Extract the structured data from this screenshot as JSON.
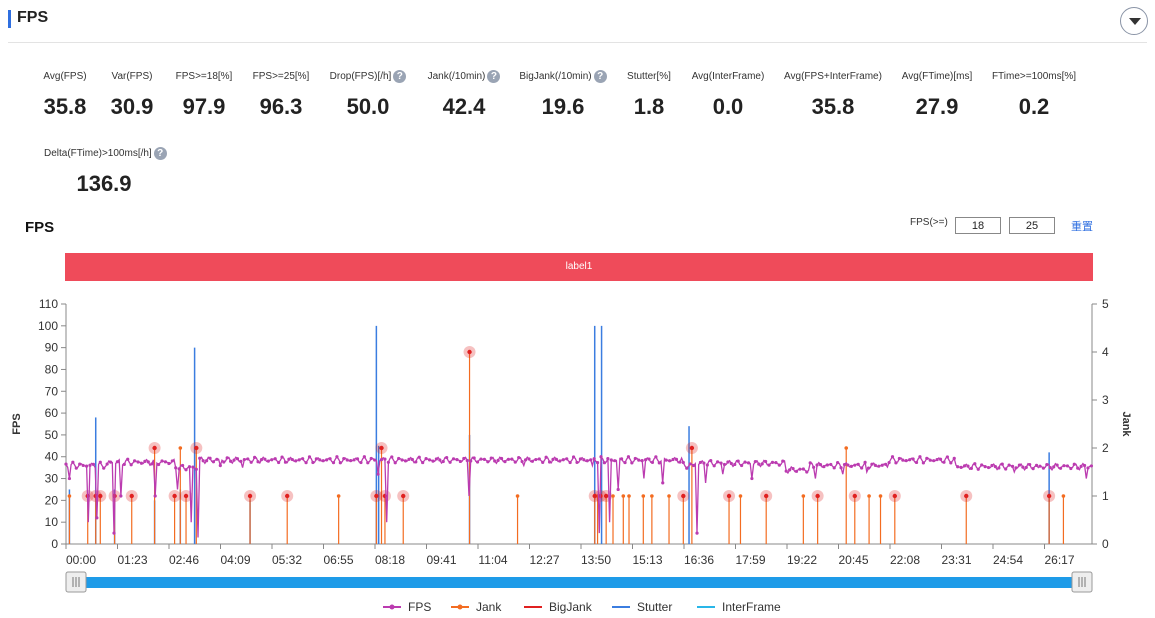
{
  "header": {
    "title": "FPS"
  },
  "metrics": [
    {
      "label": "Avg(FPS)",
      "value": "35.8",
      "help": false
    },
    {
      "label": "Var(FPS)",
      "value": "30.9",
      "help": false
    },
    {
      "label": "FPS>=18[%]",
      "value": "97.9",
      "help": false
    },
    {
      "label": "FPS>=25[%]",
      "value": "96.3",
      "help": false
    },
    {
      "label": "Drop(FPS)[/h]",
      "value": "50.0",
      "help": true
    },
    {
      "label": "Jank(/10min)",
      "value": "42.4",
      "help": true
    },
    {
      "label": "BigJank(/10min)",
      "value": "19.6",
      "help": true
    },
    {
      "label": "Stutter[%]",
      "value": "1.8",
      "help": false
    },
    {
      "label": "Avg(InterFrame)",
      "value": "0.0",
      "help": false
    },
    {
      "label": "Avg(FPS+InterFrame)",
      "value": "35.8",
      "help": false
    },
    {
      "label": "Avg(FTime)[ms]",
      "value": "27.9",
      "help": false
    },
    {
      "label": "FTime>=100ms[%]",
      "value": "0.2",
      "help": false
    },
    {
      "label": "Delta(FTime)>100ms[/h]",
      "value": "136.9",
      "help": true
    }
  ],
  "chart_panel": {
    "title": "FPS",
    "threshold_label": "FPS(>=)",
    "threshold_low": "18",
    "threshold_high": "25",
    "reset_label": "重置",
    "band_label": "label1"
  },
  "colors": {
    "fps": "#bb3bb0",
    "jank": "#f36c21",
    "bigjank": "#e02020",
    "stutter": "#3b7de0",
    "interframe": "#29b6e8",
    "band": "#ef4b5a",
    "slider": "#1e9be8"
  },
  "chart_data": {
    "type": "line",
    "x_ticks": [
      "00:00",
      "01:23",
      "02:46",
      "04:09",
      "05:32",
      "06:55",
      "08:18",
      "09:41",
      "11:04",
      "12:27",
      "13:50",
      "15:13",
      "16:36",
      "17:59",
      "19:22",
      "20:45",
      "22:08",
      "23:31",
      "24:54",
      "26:17"
    ],
    "x_range_seconds": [
      0,
      1795
    ],
    "ylabel": "FPS",
    "ylabel_right": "Jank",
    "ylim": [
      0,
      110
    ],
    "y_ticks": [
      0,
      10,
      20,
      30,
      40,
      50,
      60,
      70,
      80,
      90,
      100,
      110
    ],
    "ylim_right": [
      0,
      5
    ],
    "y_ticks_right": [
      0,
      1,
      2,
      3,
      4,
      5
    ],
    "fps_segments": [
      {
        "from": 0,
        "to": 75,
        "value": 36
      },
      {
        "from": 75,
        "to": 190,
        "value": 37.5
      },
      {
        "from": 190,
        "to": 230,
        "value": 35
      },
      {
        "from": 230,
        "to": 1080,
        "value": 38.5
      },
      {
        "from": 1080,
        "to": 1100,
        "value": 36
      },
      {
        "from": 1100,
        "to": 1260,
        "value": 37
      },
      {
        "from": 1260,
        "to": 1300,
        "value": 34
      },
      {
        "from": 1300,
        "to": 1440,
        "value": 36
      },
      {
        "from": 1440,
        "to": 1555,
        "value": 38.5
      },
      {
        "from": 1555,
        "to": 1795,
        "value": 35.5
      }
    ],
    "fps_drops": [
      {
        "x": 6,
        "y": 30
      },
      {
        "x": 40,
        "y": 10
      },
      {
        "x": 55,
        "y": 12
      },
      {
        "x": 83,
        "y": 5
      },
      {
        "x": 95,
        "y": 22
      },
      {
        "x": 155,
        "y": 22
      },
      {
        "x": 195,
        "y": 25
      },
      {
        "x": 220,
        "y": 10
      },
      {
        "x": 230,
        "y": 3
      },
      {
        "x": 270,
        "y": 36
      },
      {
        "x": 310,
        "y": 35
      },
      {
        "x": 545,
        "y": 32
      },
      {
        "x": 560,
        "y": 10
      },
      {
        "x": 705,
        "y": 22
      },
      {
        "x": 800,
        "y": 36
      },
      {
        "x": 920,
        "y": 36
      },
      {
        "x": 932,
        "y": 5
      },
      {
        "x": 950,
        "y": 10
      },
      {
        "x": 965,
        "y": 25
      },
      {
        "x": 1010,
        "y": 30
      },
      {
        "x": 1045,
        "y": 28
      },
      {
        "x": 1105,
        "y": 5
      },
      {
        "x": 1120,
        "y": 28
      },
      {
        "x": 1150,
        "y": 32
      },
      {
        "x": 1200,
        "y": 30
      },
      {
        "x": 1310,
        "y": 30
      },
      {
        "x": 1360,
        "y": 32
      },
      {
        "x": 1400,
        "y": 33
      },
      {
        "x": 1660,
        "y": 33
      },
      {
        "x": 1700,
        "y": 35
      },
      {
        "x": 1785,
        "y": 30
      }
    ],
    "jank": [
      {
        "x": 6,
        "y": 1
      },
      {
        "x": 38,
        "y": 1
      },
      {
        "x": 52,
        "y": 1
      },
      {
        "x": 60,
        "y": 1
      },
      {
        "x": 85,
        "y": 1
      },
      {
        "x": 115,
        "y": 1
      },
      {
        "x": 155,
        "y": 2
      },
      {
        "x": 190,
        "y": 1
      },
      {
        "x": 200,
        "y": 2
      },
      {
        "x": 210,
        "y": 1
      },
      {
        "x": 228,
        "y": 2
      },
      {
        "x": 322,
        "y": 1
      },
      {
        "x": 387,
        "y": 1
      },
      {
        "x": 477,
        "y": 1
      },
      {
        "x": 543,
        "y": 1
      },
      {
        "x": 552,
        "y": 2
      },
      {
        "x": 558,
        "y": 1
      },
      {
        "x": 590,
        "y": 1
      },
      {
        "x": 706,
        "y": 4
      },
      {
        "x": 790,
        "y": 1
      },
      {
        "x": 925,
        "y": 1
      },
      {
        "x": 930,
        "y": 1
      },
      {
        "x": 945,
        "y": 1
      },
      {
        "x": 957,
        "y": 1
      },
      {
        "x": 975,
        "y": 1
      },
      {
        "x": 985,
        "y": 1
      },
      {
        "x": 1010,
        "y": 1
      },
      {
        "x": 1025,
        "y": 1
      },
      {
        "x": 1055,
        "y": 1
      },
      {
        "x": 1080,
        "y": 1
      },
      {
        "x": 1095,
        "y": 2
      },
      {
        "x": 1160,
        "y": 1
      },
      {
        "x": 1180,
        "y": 1
      },
      {
        "x": 1225,
        "y": 1
      },
      {
        "x": 1290,
        "y": 1
      },
      {
        "x": 1315,
        "y": 1
      },
      {
        "x": 1365,
        "y": 2
      },
      {
        "x": 1380,
        "y": 1
      },
      {
        "x": 1405,
        "y": 1
      },
      {
        "x": 1425,
        "y": 1
      },
      {
        "x": 1450,
        "y": 1
      },
      {
        "x": 1575,
        "y": 1
      },
      {
        "x": 1720,
        "y": 1
      },
      {
        "x": 1745,
        "y": 1
      }
    ],
    "bigjank_markers": [
      {
        "x": 38,
        "y": 1
      },
      {
        "x": 52,
        "y": 1
      },
      {
        "x": 60,
        "y": 1
      },
      {
        "x": 85,
        "y": 1
      },
      {
        "x": 115,
        "y": 1
      },
      {
        "x": 155,
        "y": 2
      },
      {
        "x": 190,
        "y": 1
      },
      {
        "x": 210,
        "y": 1
      },
      {
        "x": 228,
        "y": 2
      },
      {
        "x": 322,
        "y": 1
      },
      {
        "x": 387,
        "y": 1
      },
      {
        "x": 543,
        "y": 1
      },
      {
        "x": 552,
        "y": 2
      },
      {
        "x": 558,
        "y": 1
      },
      {
        "x": 590,
        "y": 1
      },
      {
        "x": 706,
        "y": 4
      },
      {
        "x": 925,
        "y": 1
      },
      {
        "x": 935,
        "y": 1
      },
      {
        "x": 945,
        "y": 1
      },
      {
        "x": 1080,
        "y": 1
      },
      {
        "x": 1095,
        "y": 2
      },
      {
        "x": 1160,
        "y": 1
      },
      {
        "x": 1225,
        "y": 1
      },
      {
        "x": 1315,
        "y": 1
      },
      {
        "x": 1380,
        "y": 1
      },
      {
        "x": 1450,
        "y": 1
      },
      {
        "x": 1575,
        "y": 1
      },
      {
        "x": 1720,
        "y": 1
      }
    ],
    "stutter": [
      {
        "x": 6,
        "y": 25
      },
      {
        "x": 52,
        "y": 58
      },
      {
        "x": 85,
        "y": 25
      },
      {
        "x": 155,
        "y": 20
      },
      {
        "x": 200,
        "y": 25
      },
      {
        "x": 225,
        "y": 90
      },
      {
        "x": 322,
        "y": 20
      },
      {
        "x": 543,
        "y": 100
      },
      {
        "x": 547,
        "y": 45
      },
      {
        "x": 706,
        "y": 50
      },
      {
        "x": 925,
        "y": 100
      },
      {
        "x": 937,
        "y": 100
      },
      {
        "x": 1090,
        "y": 54
      },
      {
        "x": 1720,
        "y": 42
      }
    ],
    "legend": [
      "FPS",
      "Jank",
      "BigJank",
      "Stutter",
      "InterFrame"
    ],
    "legend_position": "bottom-center",
    "grid": false
  }
}
